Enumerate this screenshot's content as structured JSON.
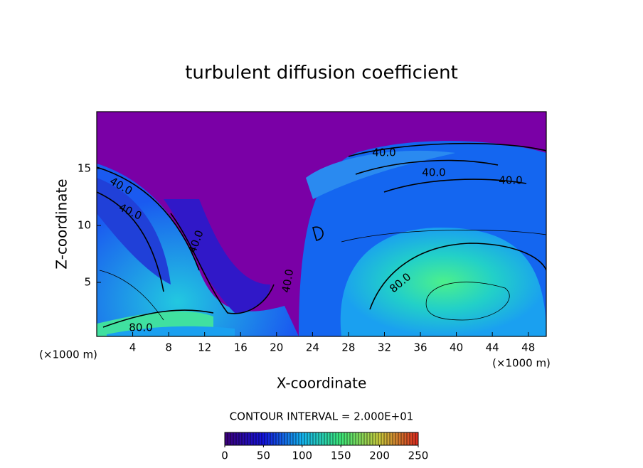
{
  "chart_data": {
    "type": "contour",
    "title": "turbulent diffusion coefficient",
    "x_label": "X-coordinate",
    "y_label": "Z-coordinate",
    "x_unit": "(×1000 m)",
    "x_unit_right": "(×1000 m)",
    "xlim": [
      0,
      50
    ],
    "xticks": [
      4,
      8,
      12,
      16,
      20,
      24,
      28,
      32,
      36,
      40,
      44,
      48
    ],
    "ylim": [
      0.25,
      20
    ],
    "yticks": [
      5,
      10,
      15
    ],
    "contour_interval_text": "CONTOUR INTERVAL = 2.000E+01",
    "contour_labels": [
      "40.0",
      "40.0",
      "40.0",
      "40.0",
      "40.0",
      "40.0",
      "40.0",
      "80.0",
      "80.0"
    ],
    "colorbar": {
      "lim": [
        0,
        250
      ],
      "ticks": [
        0,
        50,
        100,
        150,
        200,
        250
      ]
    }
  }
}
